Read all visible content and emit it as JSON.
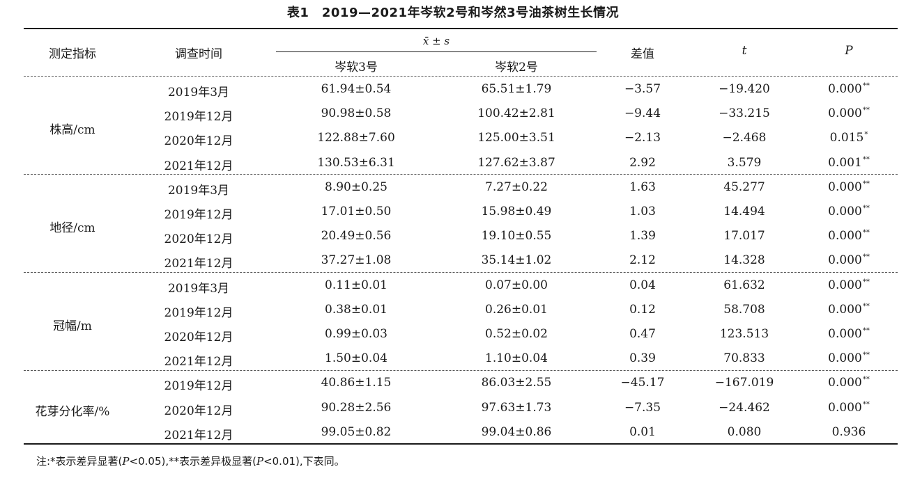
{
  "title": "表1　2019—2021年岑软2号和岑然3号油茶树生长情况",
  "headers": {
    "indicator": "测定指标",
    "time": "调查时间",
    "mean_sd": "x̄ ± s",
    "cultivar3": "岑软3号",
    "cultivar2": "岑软2号",
    "diff": "差值",
    "t": "t",
    "p": "P"
  },
  "groups": [
    {
      "name": "株高/cm",
      "rows": [
        {
          "time": "2019年3月",
          "c3": "61.94±0.54",
          "c2": "65.51±1.79",
          "diff": "−3.57",
          "t": "−19.420",
          "p": "0.000",
          "sig": "**"
        },
        {
          "time": "2019年12月",
          "c3": "90.98±0.58",
          "c2": "100.42±2.81",
          "diff": "−9.44",
          "t": "−33.215",
          "p": "0.000",
          "sig": "**"
        },
        {
          "time": "2020年12月",
          "c3": "122.88±7.60",
          "c2": "125.00±3.51",
          "diff": "−2.13",
          "t": "−2.468",
          "p": "0.015",
          "sig": "*"
        },
        {
          "time": "2021年12月",
          "c3": "130.53±6.31",
          "c2": "127.62±3.87",
          "diff": "2.92",
          "t": "3.579",
          "p": "0.001",
          "sig": "**"
        }
      ]
    },
    {
      "name": "地径/cm",
      "rows": [
        {
          "time": "2019年3月",
          "c3": "8.90±0.25",
          "c2": "7.27±0.22",
          "diff": "1.63",
          "t": "45.277",
          "p": "0.000",
          "sig": "**"
        },
        {
          "time": "2019年12月",
          "c3": "17.01±0.50",
          "c2": "15.98±0.49",
          "diff": "1.03",
          "t": "14.494",
          "p": "0.000",
          "sig": "**"
        },
        {
          "time": "2020年12月",
          "c3": "20.49±0.56",
          "c2": "19.10±0.55",
          "diff": "1.39",
          "t": "17.017",
          "p": "0.000",
          "sig": "**"
        },
        {
          "time": "2021年12月",
          "c3": "37.27±1.08",
          "c2": "35.14±1.02",
          "diff": "2.12",
          "t": "14.328",
          "p": "0.000",
          "sig": "**"
        }
      ]
    },
    {
      "name": "冠幅/m",
      "rows": [
        {
          "time": "2019年3月",
          "c3": "0.11±0.01",
          "c2": "0.07±0.00",
          "diff": "0.04",
          "t": "61.632",
          "p": "0.000",
          "sig": "**"
        },
        {
          "time": "2019年12月",
          "c3": "0.38±0.01",
          "c2": "0.26±0.01",
          "diff": "0.12",
          "t": "58.708",
          "p": "0.000",
          "sig": "**"
        },
        {
          "time": "2020年12月",
          "c3": "0.99±0.03",
          "c2": "0.52±0.02",
          "diff": "0.47",
          "t": "123.513",
          "p": "0.000",
          "sig": "**"
        },
        {
          "time": "2021年12月",
          "c3": "1.50±0.04",
          "c2": "1.10±0.04",
          "diff": "0.39",
          "t": "70.833",
          "p": "0.000",
          "sig": "**"
        }
      ]
    },
    {
      "name": "花芽分化率/%",
      "rows": [
        {
          "time": "2019年12月",
          "c3": "40.86±1.15",
          "c2": "86.03±2.55",
          "diff": "−45.17",
          "t": "−167.019",
          "p": "0.000",
          "sig": "**"
        },
        {
          "time": "2020年12月",
          "c3": "90.28±2.56",
          "c2": "97.63±1.73",
          "diff": "−7.35",
          "t": "−24.462",
          "p": "0.000",
          "sig": "**"
        },
        {
          "time": "2021年12月",
          "c3": "99.05±0.82",
          "c2": "99.04±0.86",
          "diff": "0.01",
          "t": "0.080",
          "p": "0.936",
          "sig": ""
        }
      ]
    }
  ],
  "note": {
    "prefix": "注:*表示差异显著(",
    "p1": "P",
    "mid1": "<0.05),**表示差异极显著(",
    "p2": "P",
    "suffix": "<0.01),下表同。"
  }
}
